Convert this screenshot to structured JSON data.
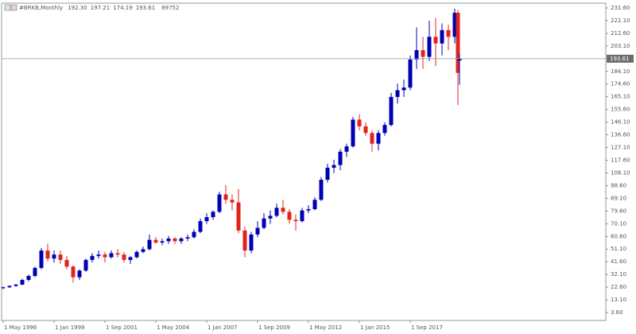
{
  "chart_data": {
    "type": "candlestick",
    "title": "#BRKB,Monthly",
    "header_values": [
      "192.30",
      "197.21",
      "174.19",
      "193.61",
      "89752"
    ],
    "current_price": {
      "value": 193.61,
      "label": "193.61"
    },
    "up_color": "#0000b4",
    "down_color": "#e0241c",
    "x": [
      "1996-05-01",
      "1996-09-01",
      "1997-01-01",
      "1997-05-01",
      "1997-09-01",
      "1998-01-01",
      "1998-05-01",
      "1998-09-01",
      "1999-01-01",
      "1999-05-01",
      "1999-09-01",
      "2000-01-01",
      "2000-05-01",
      "2000-09-01",
      "2001-01-01",
      "2001-05-01",
      "2001-09-01",
      "2002-01-01",
      "2002-05-01",
      "2002-09-01",
      "2003-01-01",
      "2003-05-01",
      "2003-09-01",
      "2004-01-01",
      "2004-05-01",
      "2004-09-01",
      "2005-01-01",
      "2005-05-01",
      "2005-09-01",
      "2006-01-01",
      "2006-05-01",
      "2006-09-01",
      "2007-01-01",
      "2007-05-01",
      "2007-09-01",
      "2008-01-01",
      "2008-05-01",
      "2008-09-01",
      "2009-01-01",
      "2009-05-01",
      "2009-09-01",
      "2010-01-01",
      "2010-05-01",
      "2010-09-01",
      "2011-01-01",
      "2011-05-01",
      "2011-09-01",
      "2012-01-01",
      "2012-05-01",
      "2012-09-01",
      "2013-01-01",
      "2013-05-01",
      "2013-09-01",
      "2014-01-01",
      "2014-05-01",
      "2014-09-01",
      "2015-01-01",
      "2015-05-01",
      "2015-09-01",
      "2016-01-01",
      "2016-05-01",
      "2016-09-01",
      "2017-01-01",
      "2017-05-01",
      "2017-09-01",
      "2018-01-01",
      "2018-05-01",
      "2018-09-01",
      "2019-01-01",
      "2019-05-01",
      "2019-09-01",
      "2020-01-01",
      "2020-03-01",
      "2020-04-01"
    ],
    "open": [
      22,
      22.5,
      23.5,
      24.5,
      28,
      31,
      37,
      50,
      44,
      47,
      43,
      38,
      30,
      35,
      43,
      46,
      47,
      45,
      48,
      47,
      43,
      45,
      49,
      51,
      58,
      56,
      57,
      59,
      57,
      59,
      60,
      64,
      72,
      75,
      79,
      92,
      88,
      86,
      65,
      50,
      62,
      67,
      74,
      76,
      82,
      79,
      73,
      72,
      80,
      81,
      88,
      103,
      112,
      114,
      124,
      128,
      148,
      143,
      138,
      130,
      138,
      144,
      165,
      170,
      172,
      193,
      200,
      195,
      210,
      205,
      215,
      210,
      228,
      192.3
    ],
    "high": [
      23,
      24,
      25,
      29,
      32,
      38,
      52,
      55,
      50,
      50,
      46,
      39,
      36,
      44,
      48,
      50,
      49,
      50,
      51,
      49,
      46,
      50,
      53,
      62,
      60,
      59,
      61,
      60,
      60,
      62,
      66,
      74,
      78,
      80,
      94,
      99,
      92,
      96,
      68,
      64,
      72,
      78,
      80,
      85,
      88,
      81,
      77,
      82,
      84,
      90,
      105,
      115,
      118,
      126,
      130,
      150,
      152,
      146,
      140,
      140,
      146,
      168,
      175,
      178,
      196,
      217,
      210,
      222,
      224,
      220,
      219,
      231,
      230,
      197.21
    ],
    "low": [
      21,
      22,
      23,
      24,
      27,
      30,
      36,
      42,
      41,
      40,
      36,
      26,
      28,
      34,
      41,
      44,
      41,
      44,
      45,
      41,
      40,
      44,
      48,
      50,
      55,
      54,
      55,
      55,
      55,
      57,
      59,
      63,
      70,
      73,
      78,
      85,
      80,
      63,
      45,
      48,
      60,
      66,
      70,
      75,
      77,
      70,
      65,
      71,
      78,
      80,
      87,
      101,
      108,
      110,
      120,
      127,
      140,
      136,
      124,
      125,
      136,
      143,
      160,
      165,
      170,
      186,
      186,
      192,
      188,
      196,
      200,
      205,
      159,
      174.19
    ],
    "close": [
      22.5,
      23.5,
      24.5,
      28,
      31,
      37,
      50,
      44,
      47,
      43,
      38,
      30,
      35,
      43,
      46,
      47,
      45,
      48,
      47,
      43,
      45,
      49,
      51,
      58,
      56,
      57,
      59,
      57,
      59,
      60,
      64,
      72,
      75,
      79,
      92,
      88,
      86,
      65,
      50,
      62,
      67,
      74,
      76,
      82,
      79,
      73,
      72,
      80,
      81,
      88,
      103,
      112,
      114,
      124,
      128,
      148,
      143,
      138,
      130,
      138,
      144,
      165,
      170,
      172,
      193,
      200,
      195,
      210,
      205,
      215,
      210,
      228,
      183,
      193.61
    ],
    "xlim": [
      "1996-04-01",
      "2027-12-01"
    ],
    "xticks": [
      {
        "value": "1996-05-01",
        "label": "1 May 1996"
      },
      {
        "value": "1999-01-01",
        "label": "1 Jan 1999"
      },
      {
        "value": "2001-09-01",
        "label": "1 Sep 2001"
      },
      {
        "value": "2004-05-01",
        "label": "1 May 2004"
      },
      {
        "value": "2007-01-01",
        "label": "1 Jan 2007"
      },
      {
        "value": "2009-09-01",
        "label": "1 Sep 2009"
      },
      {
        "value": "2012-05-01",
        "label": "1 May 2012"
      },
      {
        "value": "2015-01-01",
        "label": "1 Jan 2015"
      },
      {
        "value": "2017-09-01",
        "label": "1 Sep 2017"
      }
    ],
    "ylim": [
      -2.35,
      235.17
    ],
    "yticks": [
      {
        "value": 231.6,
        "label": "231.60"
      },
      {
        "value": 222.1,
        "label": "222.10"
      },
      {
        "value": 212.6,
        "label": "212.60"
      },
      {
        "value": 203.1,
        "label": "203.10"
      },
      {
        "value": 184.1,
        "label": "184.10"
      },
      {
        "value": 174.6,
        "label": "174.60"
      },
      {
        "value": 165.1,
        "label": "165.10"
      },
      {
        "value": 155.6,
        "label": "155.60"
      },
      {
        "value": 146.1,
        "label": "146.10"
      },
      {
        "value": 136.6,
        "label": "136.60"
      },
      {
        "value": 127.1,
        "label": "127.10"
      },
      {
        "value": 117.6,
        "label": "117.60"
      },
      {
        "value": 108.1,
        "label": "108.10"
      },
      {
        "value": 98.6,
        "label": "98.60"
      },
      {
        "value": 89.1,
        "label": "89.10"
      },
      {
        "value": 79.6,
        "label": "79.60"
      },
      {
        "value": 70.1,
        "label": "70.10"
      },
      {
        "value": 60.6,
        "label": "60.60"
      },
      {
        "value": 51.1,
        "label": "51.10"
      },
      {
        "value": 41.6,
        "label": "41.60"
      },
      {
        "value": 32.1,
        "label": "32.10"
      },
      {
        "value": 22.6,
        "label": "22.60"
      },
      {
        "value": 13.1,
        "label": "13.10"
      },
      {
        "value": 3.6,
        "label": "3.60"
      }
    ],
    "grid": false
  }
}
